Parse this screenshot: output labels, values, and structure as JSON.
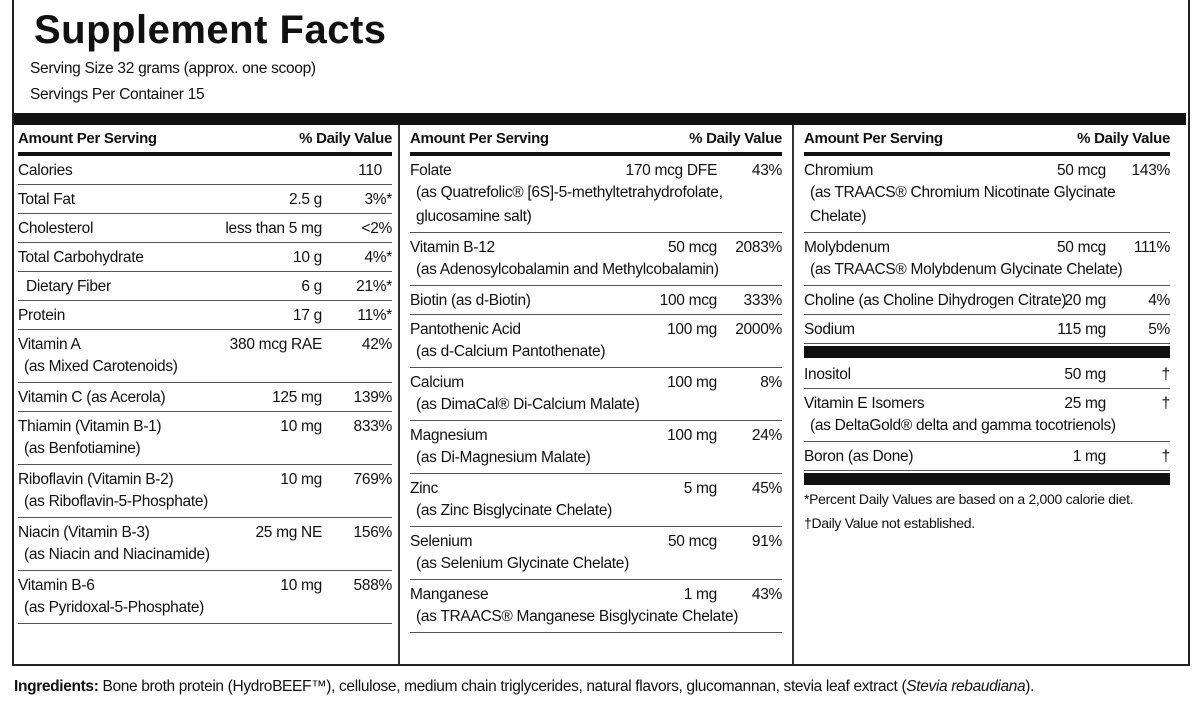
{
  "title": "Supplement Facts",
  "serving_size": "Serving Size 32 grams (approx. one scoop)",
  "servings_per_container": "Servings Per Container 15",
  "columns": [
    {
      "header": {
        "amount": "Amount Per Serving",
        "dv": "% Daily Value"
      },
      "groups": [
        [
          {
            "name": "Calories",
            "amount": "110"
          },
          {
            "name": "Total Fat",
            "amount": "2.5 g",
            "dv": "3%*"
          },
          {
            "name": "Cholesterol",
            "amount": "less than 5 mg",
            "dv": "<2%"
          },
          {
            "name": "Total Carbohydrate",
            "amount": "10 g",
            "dv": "4%*"
          },
          {
            "name": "Dietary Fiber",
            "amount": "6 g",
            "dv": "21%*",
            "indent": true
          },
          {
            "name": "Protein",
            "amount": "17 g",
            "dv": "11%*"
          },
          {
            "name": "Vitamin A",
            "amount": "380 mcg RAE",
            "dv": "42%",
            "note": "(as Mixed Carotenoids)"
          },
          {
            "name": "Vitamin C (as Acerola)",
            "amount": "125 mg",
            "dv": "139%"
          },
          {
            "name": "Thiamin (Vitamin B-1)",
            "amount": "10 mg",
            "dv": "833%",
            "note": "(as Benfotiamine)"
          },
          {
            "name": "Riboflavin (Vitamin B-2)",
            "amount": "10 mg",
            "dv": "769%",
            "note": "(as Riboflavin-5-Phosphate)"
          },
          {
            "name": "Niacin (Vitamin B-3)",
            "amount": "25 mg NE",
            "dv": "156%",
            "note": "(as Niacin and Niacinamide)"
          },
          {
            "name": "Vitamin B-6",
            "amount": "10 mg",
            "dv": "588%",
            "note": "(as Pyridoxal-5-Phosphate)"
          }
        ]
      ]
    },
    {
      "header": {
        "amount": "Amount Per Serving",
        "dv": "% Daily Value"
      },
      "groups": [
        [
          {
            "name": "Folate",
            "amount": "170 mcg DFE",
            "dv": "43%",
            "note": "(as Quatrefolic® [6S]-5-methyltetrahydrofolate, glucosamine salt)"
          },
          {
            "name": "Vitamin B-12",
            "amount": "50 mcg",
            "dv": "2083%",
            "note": "(as Adenosylcobalamin and Methylcobalamin)"
          },
          {
            "name": "Biotin (as d-Biotin)",
            "amount": "100 mcg",
            "dv": "333%"
          },
          {
            "name": "Pantothenic Acid",
            "amount": "100 mg",
            "dv": "2000%",
            "note": "(as d-Calcium Pantothenate)"
          },
          {
            "name": "Calcium",
            "amount": "100 mg",
            "dv": "8%",
            "note": "(as DimaCal® Di-Calcium Malate)"
          },
          {
            "name": "Magnesium",
            "amount": "100 mg",
            "dv": "24%",
            "note": "(as Di-Magnesium Malate)"
          },
          {
            "name": "Zinc",
            "amount": "5 mg",
            "dv": "45%",
            "note": "(as Zinc Bisglycinate Chelate)"
          },
          {
            "name": "Selenium",
            "amount": "50 mcg",
            "dv": "91%",
            "note": "(as Selenium Glycinate Chelate)"
          },
          {
            "name": "Manganese",
            "amount": "1 mg",
            "dv": "43%",
            "note": "(as TRAACS® Manganese Bisglycinate Chelate)"
          }
        ]
      ]
    },
    {
      "header": {
        "amount": "Amount Per Serving",
        "dv": "% Daily Value"
      },
      "groups": [
        [
          {
            "name": "Chromium",
            "amount": "50 mcg",
            "dv": "143%",
            "note": "(as TRAACS® Chromium Nicotinate Glycinate Chelate)"
          },
          {
            "name": "Molybdenum",
            "amount": "50 mcg",
            "dv": "111%",
            "note": "(as TRAACS® Molybdenum Glycinate Chelate)"
          },
          {
            "name": "Choline (as Choline Dihydrogen Citrate)",
            "amount": "20 mg",
            "dv": "4%"
          },
          {
            "name": "Sodium",
            "amount": "115 mg",
            "dv": "5%"
          }
        ],
        [
          {
            "name": "Inositol",
            "amount": "50 mg",
            "dv": "†"
          },
          {
            "name": "Vitamin E Isomers",
            "amount": "25 mg",
            "dv": "†",
            "note": "(as DeltaGold® delta and gamma tocotrienols)"
          },
          {
            "name": "Boron (as Done)",
            "amount": "1 mg",
            "dv": "†"
          }
        ]
      ],
      "footnotes": [
        "*Percent Daily Values are based on a 2,000 calorie diet.",
        "†Daily Value not established."
      ]
    }
  ],
  "ingredients": {
    "label": "Ingredients:",
    "text": " Bone broth protein (HydroBEEF™), cellulose, medium chain triglycerides, natural flavors, glucomannan, stevia leaf extract (",
    "italic": "Stevia rebaudiana",
    "end": ")."
  }
}
